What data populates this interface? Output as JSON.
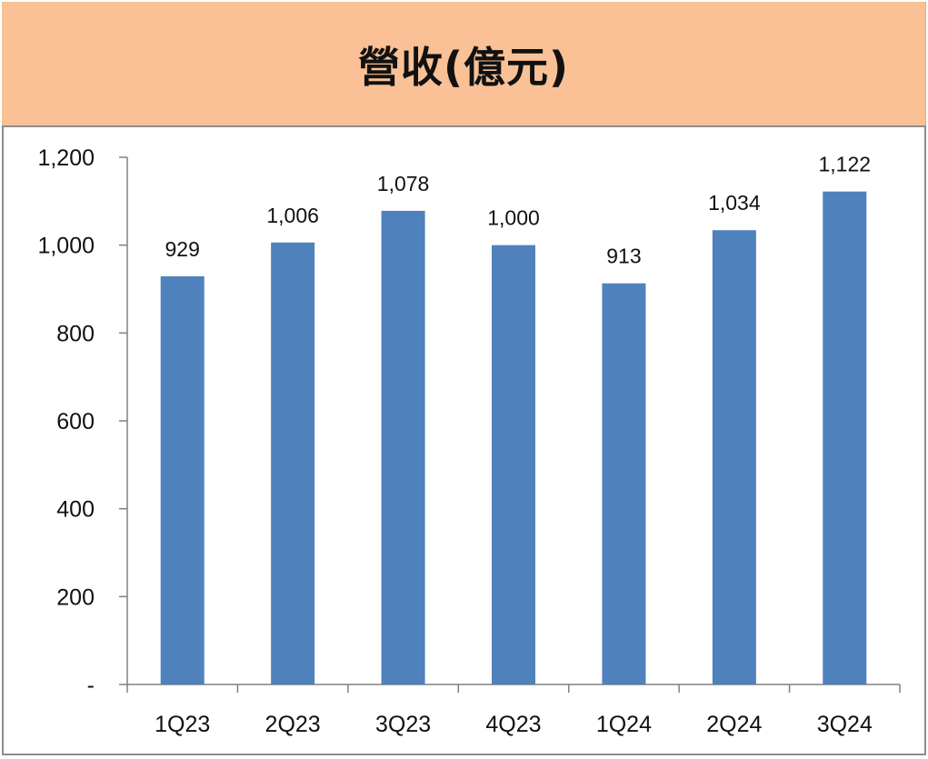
{
  "chart_data": {
    "type": "bar",
    "title": "營收(億元)",
    "categories": [
      "1Q23",
      "2Q23",
      "3Q23",
      "4Q23",
      "1Q24",
      "2Q24",
      "3Q24"
    ],
    "values": [
      929,
      1006,
      1078,
      1000,
      913,
      1034,
      1122
    ],
    "value_labels": [
      "929",
      "1,006",
      "1,078",
      "1,000",
      "913",
      "1,034",
      "1,122"
    ],
    "ylim": [
      0,
      1200
    ],
    "yticks": [
      0,
      200,
      400,
      600,
      800,
      1000,
      1200
    ],
    "ytick_labels": [
      "-",
      "200",
      "400",
      "600",
      "800",
      "1,000",
      "1,200"
    ],
    "xlabel": "",
    "ylabel": "",
    "grid": false,
    "legend": "none",
    "bar_color": "#4f81bd",
    "title_background": "#f9c195"
  }
}
